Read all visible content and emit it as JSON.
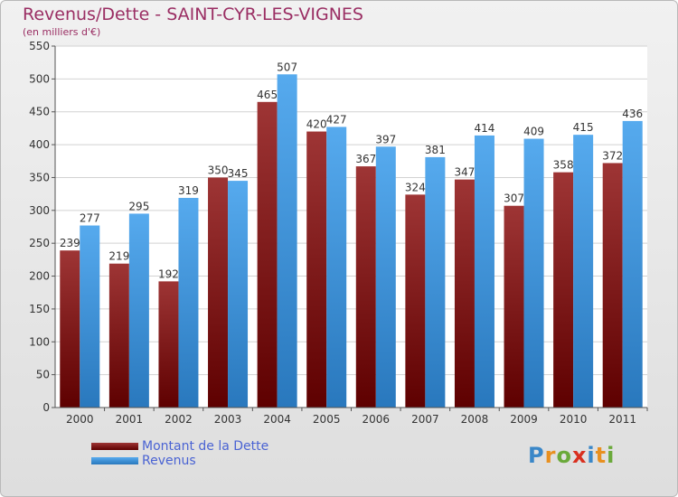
{
  "header": {
    "title": "Revenus/Dette - SAINT-CYR-LES-VIGNES",
    "subtitle": "(en milliers d'€)"
  },
  "legend": {
    "debt_label": "Montant de la Dette",
    "revenue_label": "Revenus"
  },
  "logo": {
    "text": "Proxiti",
    "letters": [
      "P",
      "r",
      "o",
      "x",
      "i",
      "t",
      "i"
    ]
  },
  "colors": {
    "debt": "#8b1a1a",
    "revenue": "#3a93de",
    "title": "#9a2e63",
    "legend_text": "#4a63d3"
  },
  "chart_data": {
    "type": "bar",
    "title": "Revenus/Dette - SAINT-CYR-LES-VIGNES",
    "subtitle": "(en milliers d'€)",
    "xlabel": "",
    "ylabel": "",
    "categories": [
      "2000",
      "2001",
      "2002",
      "2003",
      "2004",
      "2005",
      "2006",
      "2007",
      "2008",
      "2009",
      "2010",
      "2011"
    ],
    "series": [
      {
        "name": "Montant de la Dette",
        "values": [
          239,
          219,
          192,
          350,
          465,
          420,
          367,
          324,
          347,
          307,
          358,
          372
        ]
      },
      {
        "name": "Revenus",
        "values": [
          277,
          295,
          319,
          345,
          507,
          427,
          397,
          381,
          414,
          409,
          415,
          436
        ]
      }
    ],
    "ylim": [
      0,
      550
    ],
    "yticks": [
      0,
      50,
      100,
      150,
      200,
      250,
      300,
      350,
      400,
      450,
      500,
      550
    ],
    "grid": true,
    "legend_position": "bottom-left"
  }
}
